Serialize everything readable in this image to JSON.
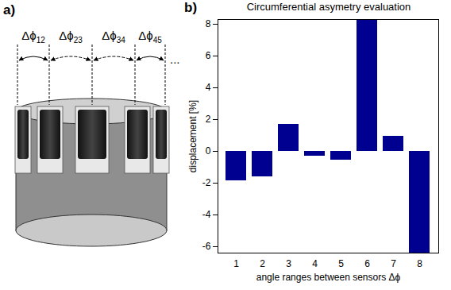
{
  "diagram": {
    "panel_label": "a)",
    "angle_labels": [
      "Δϕ12",
      "Δϕ23",
      "Δϕ34",
      "Δϕ45"
    ],
    "continuation": "..."
  },
  "chart_data": {
    "type": "bar",
    "panel_label": "b)",
    "title": "Circumferential asymetry evaluation",
    "x_label": "angle ranges between sensors Δϕ",
    "y_label": "displacement [%]",
    "categories": [
      "1",
      "2",
      "3",
      "4",
      "5",
      "6",
      "7",
      "8"
    ],
    "values": [
      -1.85,
      -1.6,
      1.7,
      -0.3,
      -0.55,
      8.3,
      0.95,
      -6.4
    ],
    "color": "#000090",
    "ylim": [
      -6.4,
      8.3
    ],
    "yticks": [
      -6,
      -4,
      -2,
      0,
      2,
      4,
      6,
      8
    ],
    "grid": false
  }
}
